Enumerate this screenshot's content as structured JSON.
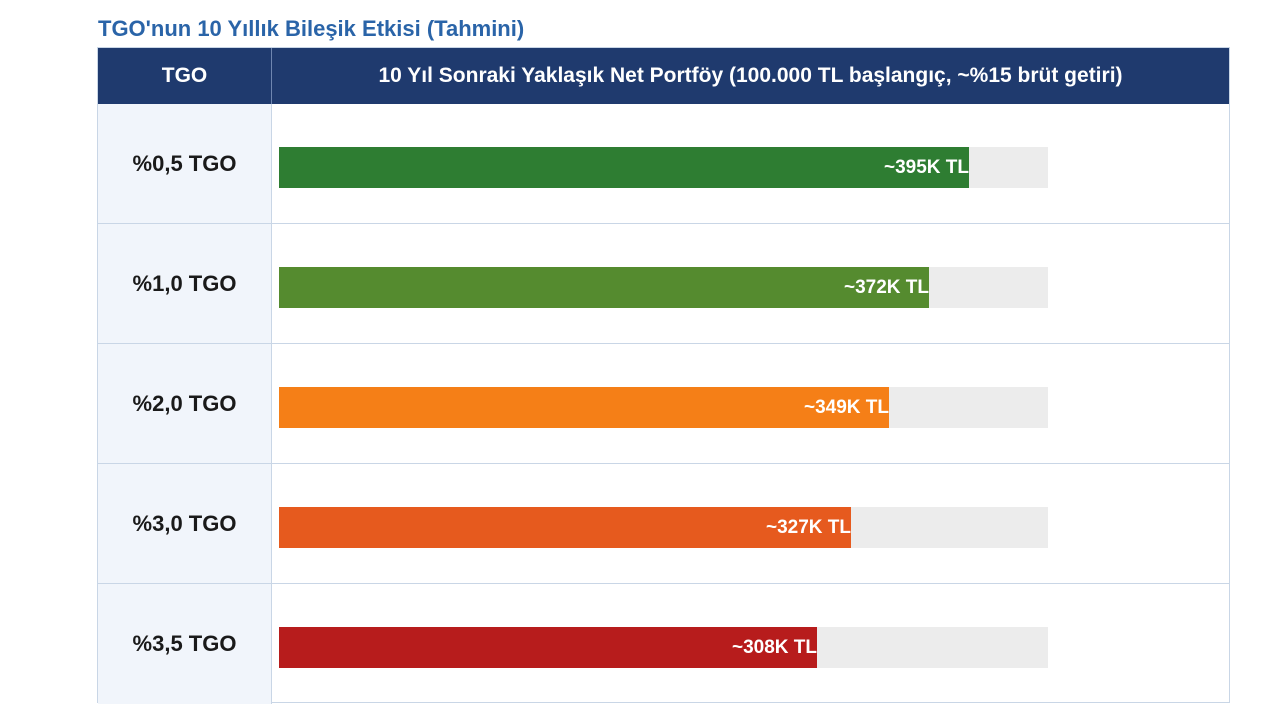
{
  "title": "TGO'nun 10 Yıllık Bileşik Etkisi (Tahmini)",
  "table": {
    "header_left": "TGO",
    "header_right": "10 Yıl Sonraki Yaklaşık Net Portföy (100.000 TL başlangıç, ~%15 brüt getiri)"
  },
  "chart_data": {
    "type": "bar",
    "orientation": "horizontal",
    "title": "TGO'nun 10 Yıllık Bileşik Etkisi (Tahmini)",
    "xlabel": "10 Yıl Sonraki Yaklaşık Net Portföy (100.000 TL başlangıç, ~%15 brüt getiri)",
    "ylabel": "TGO",
    "categories": [
      "%0,5 TGO",
      "%1,0 TGO",
      "%2,0 TGO",
      "%3,0 TGO",
      "%3,5 TGO"
    ],
    "values": [
      395,
      372,
      349,
      327,
      308
    ],
    "value_labels": [
      "~395K TL",
      "~372K TL",
      "~349K TL",
      "~327K TL",
      "~308K TL"
    ],
    "colors": [
      "#2e7d32",
      "#558b2f",
      "#f57f17",
      "#e65a1e",
      "#b71c1c"
    ],
    "track_color": "#ececec",
    "xlim": [
      0,
      440
    ]
  }
}
